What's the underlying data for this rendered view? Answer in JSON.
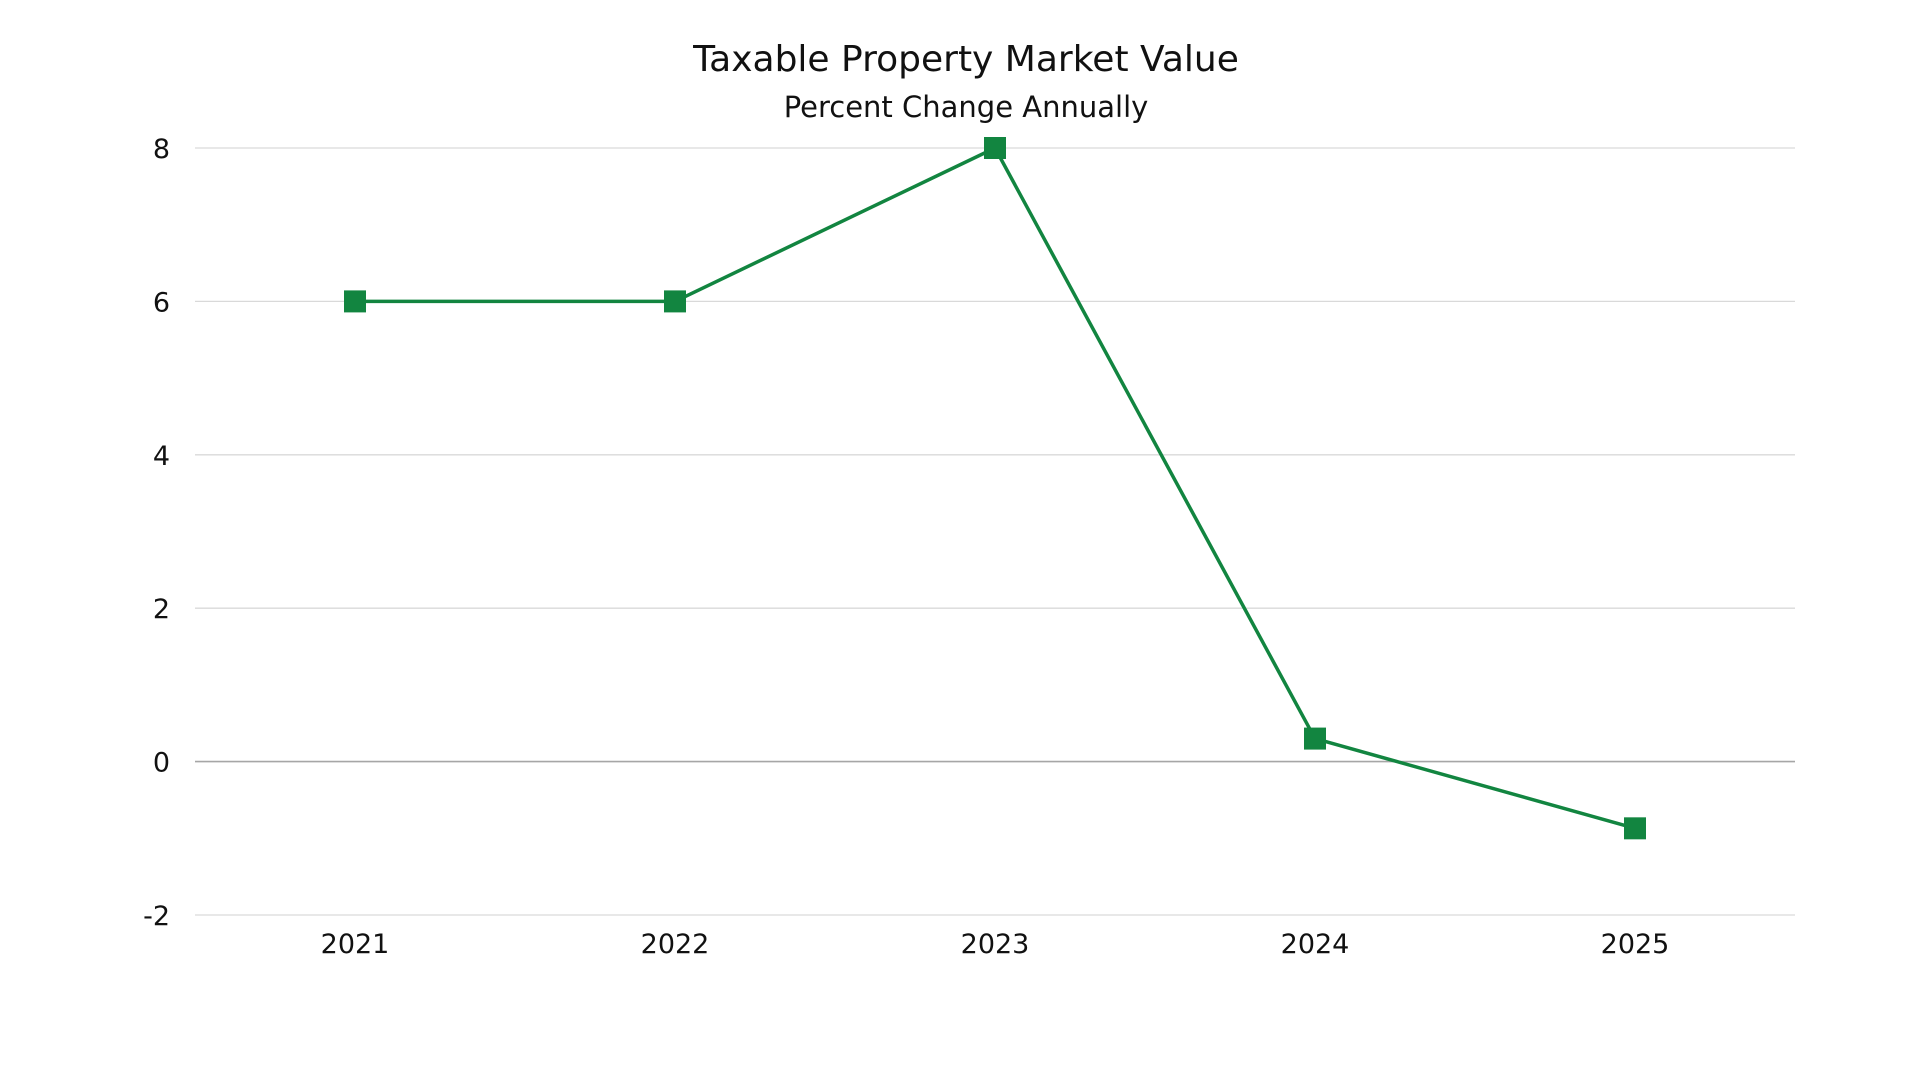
{
  "chart_data": {
    "type": "line",
    "title": "Taxable Property Market Value",
    "subtitle": "Percent Change Annually",
    "xlabel": "",
    "ylabel": "",
    "categories": [
      "2021",
      "2022",
      "2023",
      "2024",
      "2025"
    ],
    "series": [
      {
        "values": [
          6,
          6,
          8,
          0.3,
          -0.87
        ],
        "color": "#128540",
        "marker": "square"
      }
    ],
    "ylim": [
      -2,
      8
    ],
    "yticks": [
      -2,
      0,
      2,
      4,
      6,
      8
    ],
    "ytick_labels": [
      "-2",
      "0",
      "2",
      "4",
      "6",
      "8"
    ],
    "grid": true,
    "legend": "none",
    "colors": {
      "series": "#128540",
      "grid": "#d9d9d9",
      "zero_line": "#a6a6a6",
      "text": "#111111"
    }
  }
}
